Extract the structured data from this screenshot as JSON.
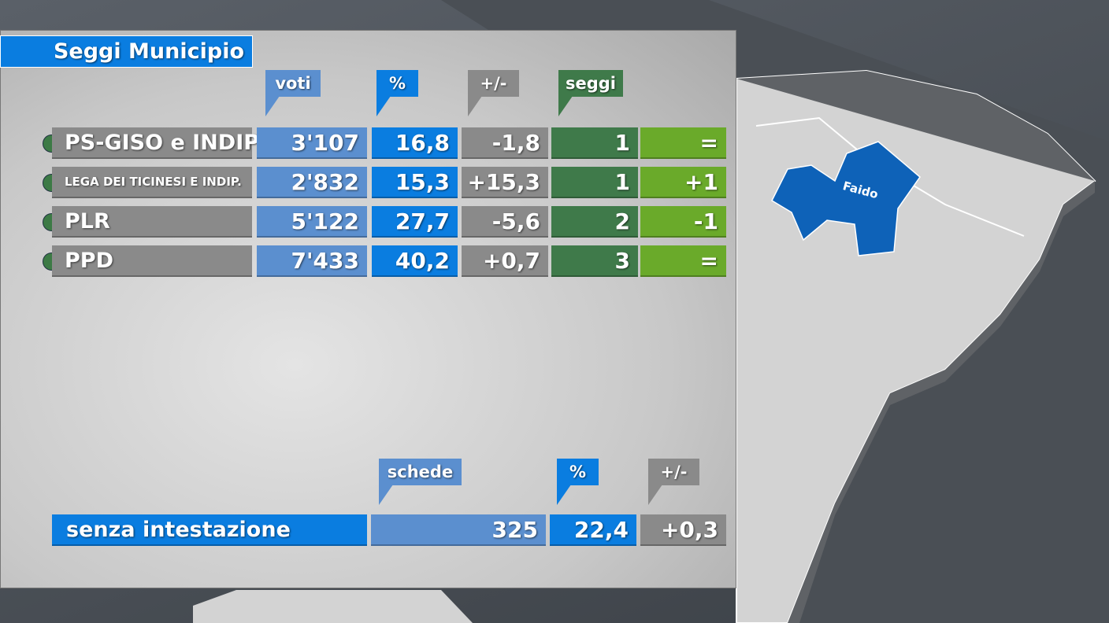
{
  "title": "Seggi Municipio",
  "headers": [
    "voti",
    "%",
    "+/-",
    "seggi"
  ],
  "rows": [
    {
      "party": "PS-GISO e INDIP.",
      "cells": [
        "3'107",
        "16,8",
        "-1,8",
        "1",
        "="
      ]
    },
    {
      "party": "LEGA DEI TICINESI E INDIP.",
      "cells": [
        "2'832",
        "15,3",
        "+15,3",
        "1",
        "+1"
      ]
    },
    {
      "party": "PLR",
      "cells": [
        "5'122",
        "27,7",
        "-5,6",
        "2",
        "-1"
      ]
    },
    {
      "party": "PPD",
      "cells": [
        "7'433",
        "40,2",
        "+0,7",
        "3",
        "="
      ]
    }
  ],
  "summary": {
    "headers": [
      "schede",
      "%",
      "+/-"
    ],
    "label": "senza intestazione",
    "cells": [
      "325",
      "22,4",
      "+0,3"
    ]
  },
  "map": {
    "label": "Faido"
  }
}
